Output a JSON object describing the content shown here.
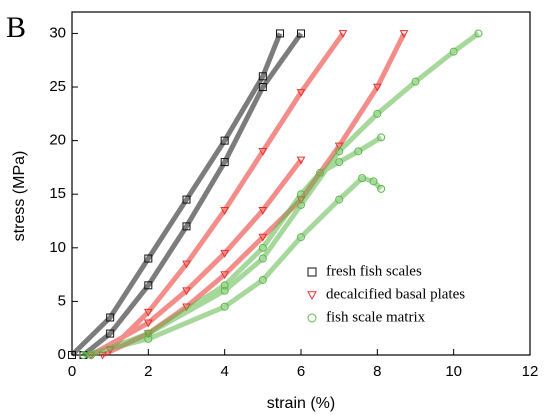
{
  "chart_data": {
    "type": "line",
    "panel_label": "B",
    "x_label": "strain (%)",
    "y_label": "stress (MPa)",
    "xlim": [
      0,
      12
    ],
    "ylim": [
      0,
      32
    ],
    "xticks": [
      0,
      2,
      4,
      6,
      8,
      10,
      12
    ],
    "yticks": [
      0,
      5,
      10,
      15,
      20,
      25,
      30
    ],
    "legend_position": "lower right",
    "series": [
      {
        "name": "fresh fish scales",
        "color": "#111111",
        "marker": "square",
        "x": [
          0,
          1,
          2,
          3,
          4,
          5,
          5.45,
          null,
          0.3,
          1,
          2,
          3,
          4,
          5,
          6
        ],
        "values": [
          0,
          3.5,
          9,
          14.5,
          20,
          26,
          30,
          null,
          0,
          2,
          6.5,
          12,
          18,
          25,
          30
        ]
      },
      {
        "name": "decalcified basal plates",
        "color": "#e8302a",
        "marker": "triangle",
        "x": [
          1,
          2,
          3,
          4,
          5,
          6,
          7.1,
          null,
          0.8,
          2,
          3,
          4,
          5,
          6,
          7,
          8,
          8.7,
          null,
          0.5,
          2,
          3,
          4,
          5,
          6
        ],
        "values": [
          0.5,
          4,
          8.5,
          13.5,
          19,
          24.5,
          30,
          null,
          0,
          2,
          4.5,
          7.5,
          11,
          14.5,
          19.5,
          25,
          30,
          null,
          0,
          3,
          6,
          9.5,
          13.5,
          18.2
        ]
      },
      {
        "name": "fish scale matrix",
        "color": "#5cb84a",
        "marker": "circle",
        "x": [
          0.5,
          2,
          4,
          5,
          6,
          7,
          8,
          9,
          10,
          10.65,
          null,
          0.5,
          2,
          4,
          5,
          6,
          6.5,
          7,
          7.5,
          8.1,
          null,
          0.3,
          2,
          4,
          5,
          6,
          7,
          7.6,
          7.9,
          8.1
        ],
        "values": [
          0,
          2,
          6,
          9,
          14,
          19,
          22.5,
          25.5,
          28.3,
          30,
          null,
          0,
          2,
          6.5,
          10,
          15,
          17,
          18,
          19,
          20.3,
          null,
          0,
          1.5,
          4.5,
          7,
          11,
          14.5,
          16.5,
          16.2,
          15.5
        ]
      }
    ]
  }
}
